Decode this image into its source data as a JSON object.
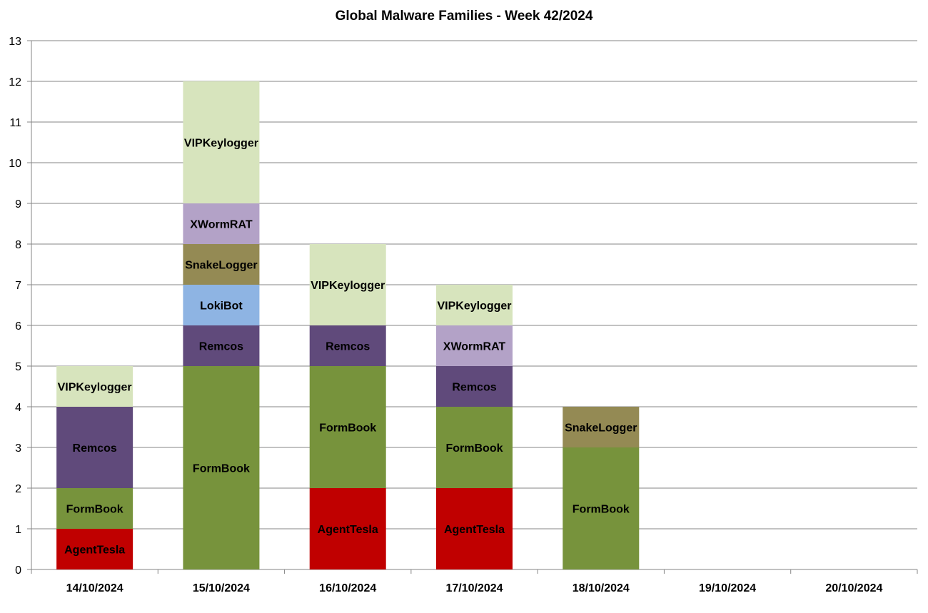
{
  "chart_data": {
    "type": "bar",
    "stacked": true,
    "title": "Global Malware Families - Week 42/2024",
    "xlabel": "",
    "ylabel": "",
    "ylim": [
      0,
      13
    ],
    "yticks": [
      0,
      1,
      2,
      3,
      4,
      5,
      6,
      7,
      8,
      9,
      10,
      11,
      12,
      13
    ],
    "grid": true,
    "legend": "none",
    "categories": [
      "14/10/2024",
      "15/10/2024",
      "16/10/2024",
      "17/10/2024",
      "18/10/2024",
      "19/10/2024",
      "20/10/2024"
    ],
    "series": [
      {
        "name": "AgentTesla",
        "color": "#c00000",
        "values": [
          1,
          0,
          2,
          2,
          0,
          0,
          0
        ]
      },
      {
        "name": "FormBook",
        "color": "#77933c",
        "values": [
          1,
          5,
          3,
          2,
          3,
          0,
          0
        ]
      },
      {
        "name": "Remcos",
        "color": "#604a7b",
        "values": [
          2,
          1,
          1,
          1,
          0,
          0,
          0
        ]
      },
      {
        "name": "XWormRAT",
        "color": "#b3a2c7",
        "values": [
          0,
          0,
          0,
          1,
          0,
          0,
          0
        ]
      },
      {
        "name": "LokiBot",
        "color": "#8eb4e3",
        "values": [
          0,
          1,
          0,
          0,
          0,
          0,
          0
        ]
      },
      {
        "name": "SnakeLogger",
        "color": "#948a54",
        "values": [
          0,
          1,
          0,
          0,
          1,
          0,
          0
        ]
      },
      {
        "name": "XWormRAT",
        "color": "#b3a2c7",
        "values": [
          0,
          1,
          0,
          0,
          0,
          0,
          0
        ]
      },
      {
        "name": "VIPKeylogger",
        "color": "#d7e4bd",
        "values": [
          1,
          3,
          2,
          1,
          0,
          0,
          0
        ]
      }
    ]
  }
}
